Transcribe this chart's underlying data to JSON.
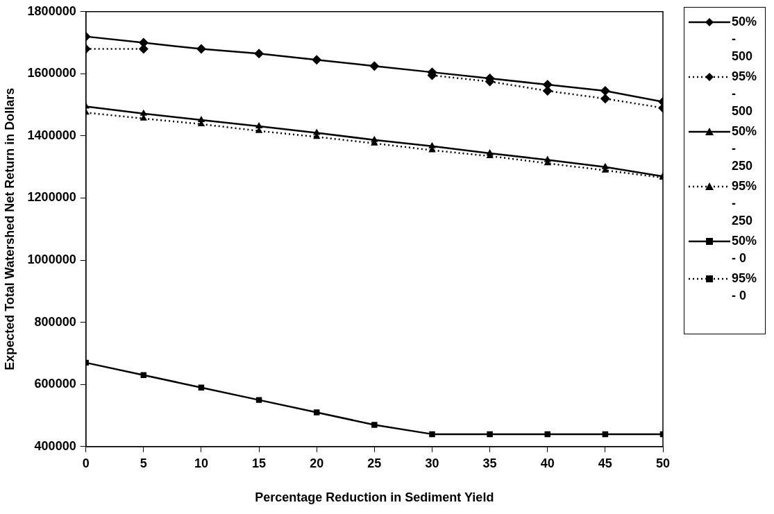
{
  "chart_data": {
    "type": "line",
    "xlabel": "Percentage Reduction in Sediment Yield",
    "ylabel": "Expected Total Watershed Net Return in Dollars",
    "x": [
      0,
      5,
      10,
      15,
      20,
      25,
      30,
      35,
      40,
      45,
      50
    ],
    "xlim": [
      0,
      50
    ],
    "xticks": [
      0,
      5,
      10,
      15,
      20,
      25,
      30,
      35,
      40,
      45,
      50
    ],
    "ylim": [
      400000,
      1800000
    ],
    "yticks": [
      400000,
      600000,
      800000,
      1000000,
      1200000,
      1400000,
      1600000,
      1800000
    ],
    "grid": false,
    "legend": "right",
    "series": [
      {
        "name": "50% - 500",
        "color": "#000000",
        "marker": "diamond",
        "line_style": "solid",
        "values": [
          1720000,
          1700000,
          1680000,
          1665000,
          1645000,
          1625000,
          1605000,
          1585000,
          1565000,
          1545000,
          1510000
        ]
      },
      {
        "name": "95% - 500",
        "color": "#000000",
        "marker": "diamond",
        "line_style": "dotted",
        "values": [
          1680000,
          1680000,
          null,
          null,
          null,
          null,
          1595000,
          1575000,
          1545000,
          1520000,
          1490000
        ]
      },
      {
        "name": "50% - 250",
        "color": "#000000",
        "marker": "triangle",
        "line_style": "solid",
        "values": [
          1495000,
          1472000,
          1451000,
          1431000,
          1410000,
          1387000,
          1367000,
          1344000,
          1323000,
          1300000,
          1270000
        ]
      },
      {
        "name": "95% - 250",
        "color": "#000000",
        "marker": "triangle",
        "line_style": "dotted",
        "values": [
          1475000,
          1456000,
          1438000,
          1416000,
          1397000,
          1376000,
          1354000,
          1335000,
          1312000,
          1289000,
          1266000
        ]
      },
      {
        "name": "50% - 0",
        "color": "#000000",
        "marker": "square",
        "line_style": "solid",
        "values": [
          670000,
          630000,
          590000,
          550000,
          510000,
          470000,
          440000,
          440000,
          440000,
          440000,
          440000
        ]
      },
      {
        "name": "95% - 0",
        "color": "#000000",
        "marker": "square",
        "line_style": "dotted",
        "values": [
          null,
          null,
          null,
          null,
          null,
          null,
          null,
          null,
          null,
          null,
          null
        ]
      }
    ]
  }
}
